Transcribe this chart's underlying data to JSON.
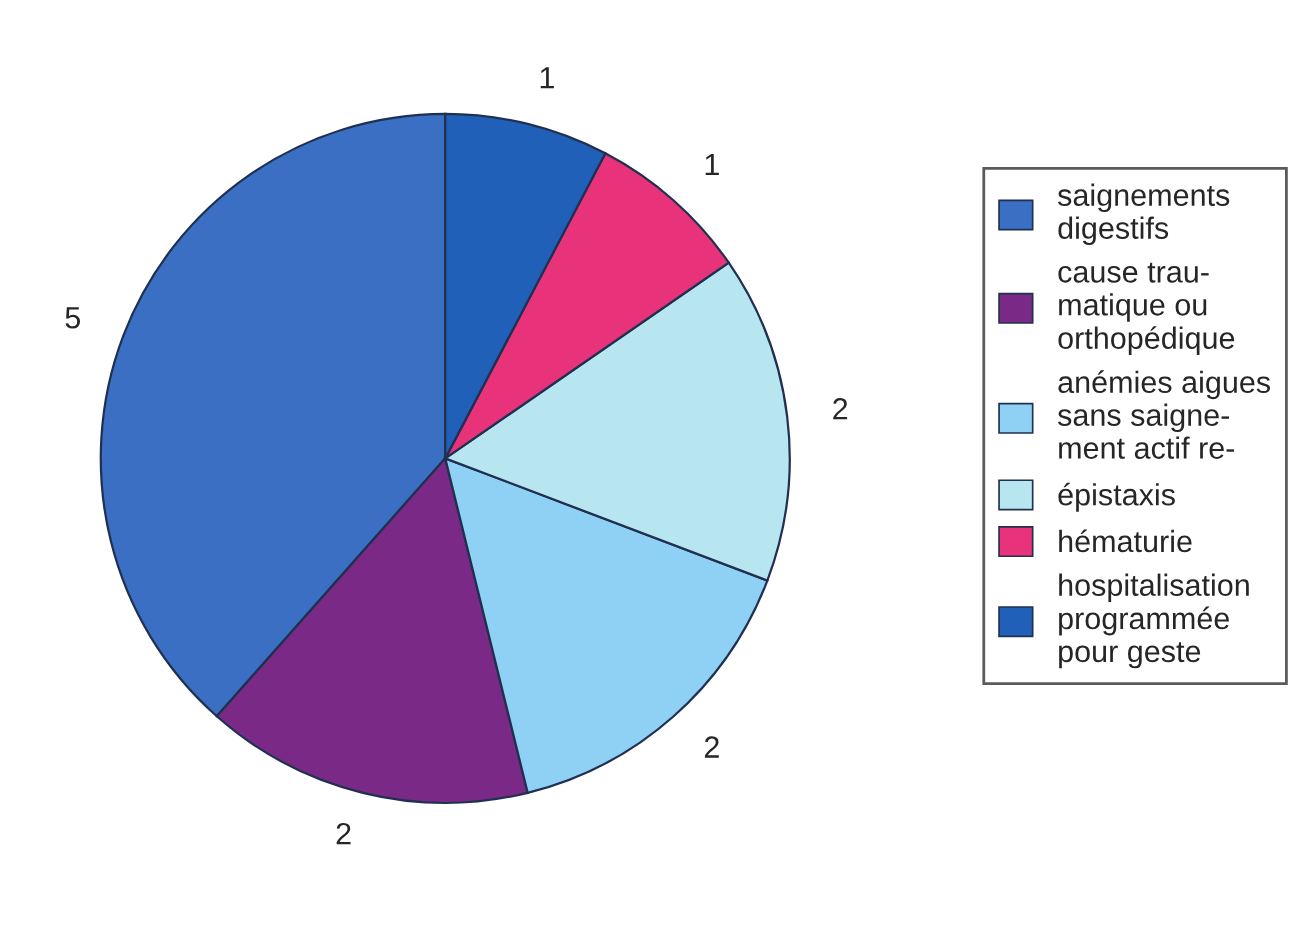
{
  "chart_data": {
    "type": "pie",
    "categories": [
      "saignements\ndigestifs",
      "cause trau-\nmatique ou\northopédique",
      "anémies aigues\nsans saigne-\nment actif re-",
      "épistaxis",
      "hématurie",
      "hospitalisation\nprogrammée\npour geste"
    ],
    "values": [
      5,
      2,
      2,
      2,
      1,
      1
    ],
    "colors": [
      "#3a6fc4",
      "#7a2a86",
      "#8fd0f5",
      "#b8e6f0",
      "#e8327a",
      "#2060b8"
    ],
    "data_labels": true,
    "legend": "right"
  }
}
